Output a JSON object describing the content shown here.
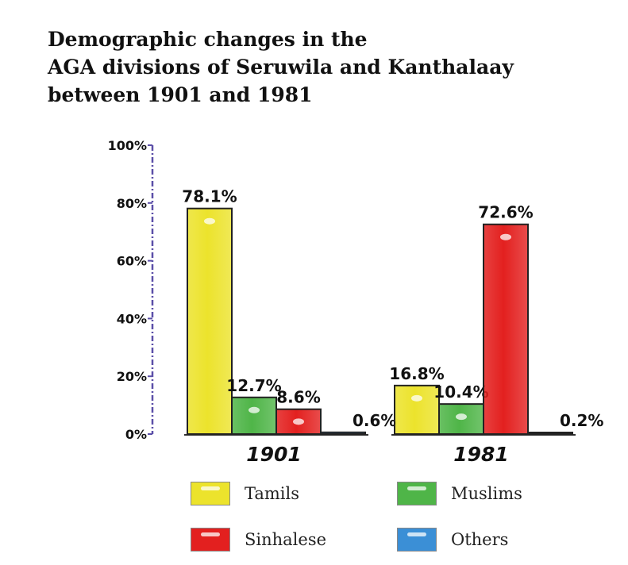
{
  "chart_data": {
    "type": "bar",
    "title_lines": [
      "Demographic changes in the",
      "AGA divisions of Seruwila and Kanthalaay",
      "between 1901 and 1981"
    ],
    "categories": [
      "1901",
      "1981"
    ],
    "series": [
      {
        "name": "Tamils",
        "values": [
          78.1,
          16.8
        ],
        "labels": [
          "78.1%",
          "16.8%"
        ],
        "color": "#ece32c"
      },
      {
        "name": "Muslims",
        "values": [
          12.7,
          10.4
        ],
        "labels": [
          "12.7%",
          "10.4%"
        ],
        "color": "#4fb548"
      },
      {
        "name": "Sinhalese",
        "values": [
          8.6,
          72.6
        ],
        "labels": [
          "8.6%",
          "72.6%"
        ],
        "color": "#e3201f"
      },
      {
        "name": "Others",
        "values": [
          0.6,
          0.2
        ],
        "labels": [
          "0.6%",
          "0.2%"
        ],
        "color": "#3b8fd6"
      }
    ],
    "ylim": [
      0,
      100
    ],
    "yticks": [
      0,
      20,
      40,
      60,
      80,
      100
    ],
    "ytick_labels": [
      "0%",
      "20%",
      "40%",
      "60%",
      "80%",
      "100%"
    ],
    "axis_color": "#5b4fa8",
    "grid": false,
    "legend_position": "bottom"
  }
}
